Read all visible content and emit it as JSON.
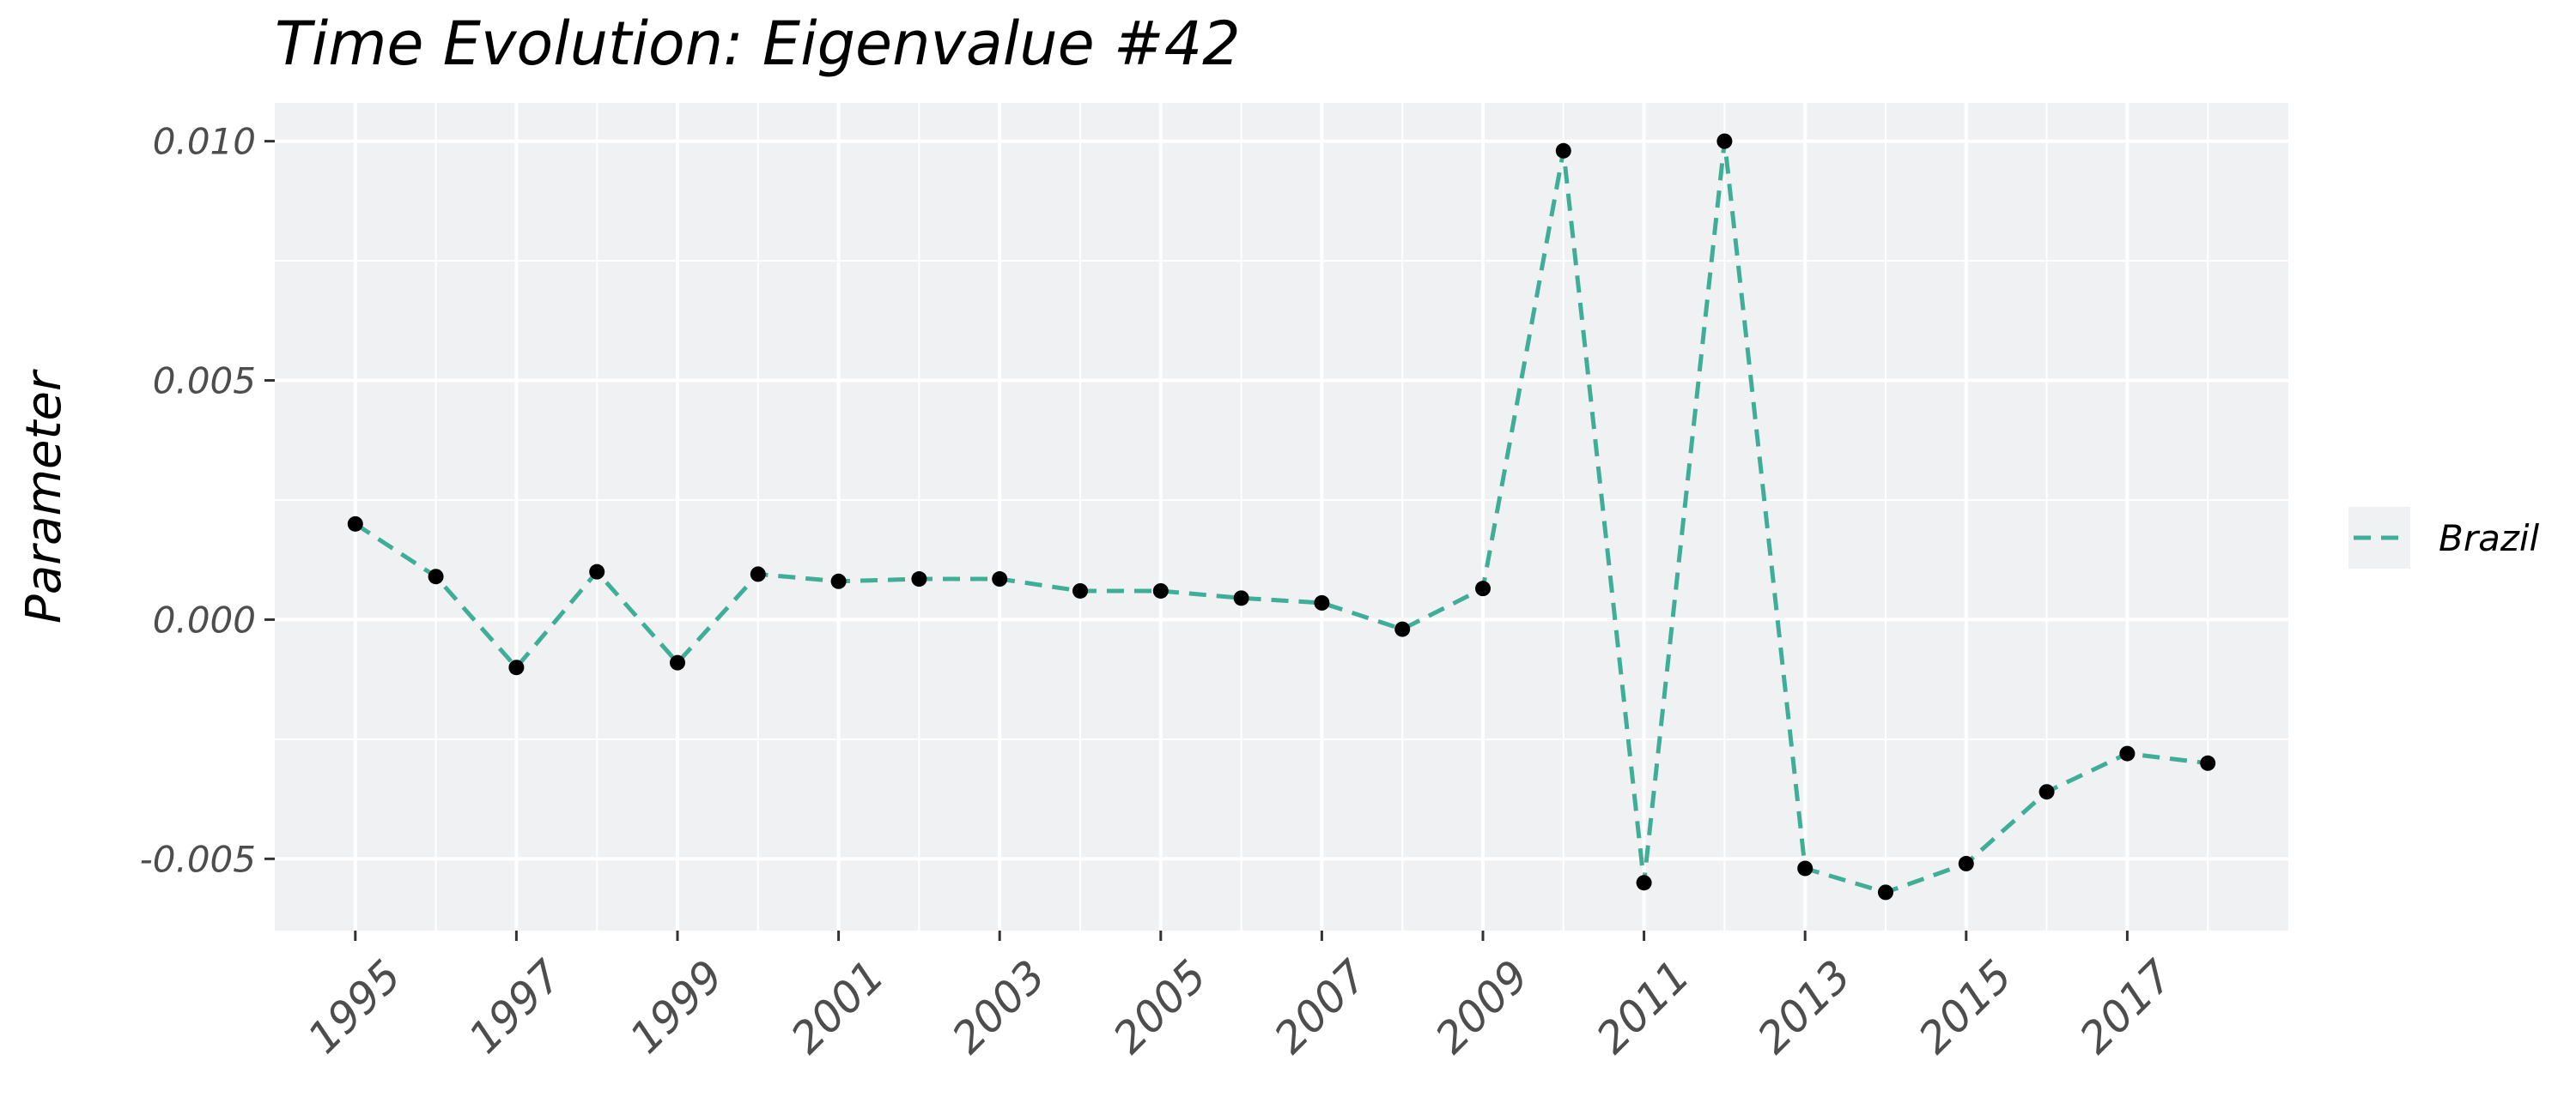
{
  "chart_data": {
    "type": "line",
    "title": "Time Evolution: Eigenvalue #42",
    "xlabel": "",
    "ylabel": "Parameter",
    "x": [
      1995,
      1996,
      1997,
      1998,
      1999,
      2000,
      2001,
      2002,
      2003,
      2004,
      2005,
      2006,
      2007,
      2008,
      2009,
      2010,
      2011,
      2012,
      2013,
      2014,
      2015,
      2016,
      2017,
      2018
    ],
    "series": [
      {
        "name": "Brazil",
        "color": "#3fae96",
        "line_style": "dashed",
        "marker_color": "#000000",
        "values": [
          0.002,
          0.0009,
          -0.001,
          0.001,
          -0.0009,
          0.00095,
          0.0008,
          0.00085,
          0.00085,
          0.0006,
          0.0006,
          0.00045,
          0.00035,
          -0.0002,
          0.00065,
          0.0098,
          -0.0055,
          0.01,
          -0.0052,
          -0.0057,
          -0.0051,
          -0.0036,
          -0.0028,
          -0.003
        ]
      }
    ],
    "xlim": [
      1994.0,
      2019.0
    ],
    "ylim": [
      -0.0065,
      0.0108
    ],
    "xticks": [
      1995,
      1997,
      1999,
      2001,
      2003,
      2005,
      2007,
      2009,
      2011,
      2013,
      2015,
      2017
    ],
    "xtick_labels": [
      "1995",
      "1997",
      "1999",
      "2001",
      "2003",
      "2005",
      "2007",
      "2009",
      "2011",
      "2013",
      "2015",
      "2017"
    ],
    "yticks": [
      -0.005,
      0.0,
      0.005,
      0.01
    ],
    "ytick_labels": [
      "-0.005",
      "0.000",
      "0.005",
      "0.010"
    ],
    "grid": true,
    "panel_background": "#f0f1f2",
    "legend_position": "right"
  }
}
